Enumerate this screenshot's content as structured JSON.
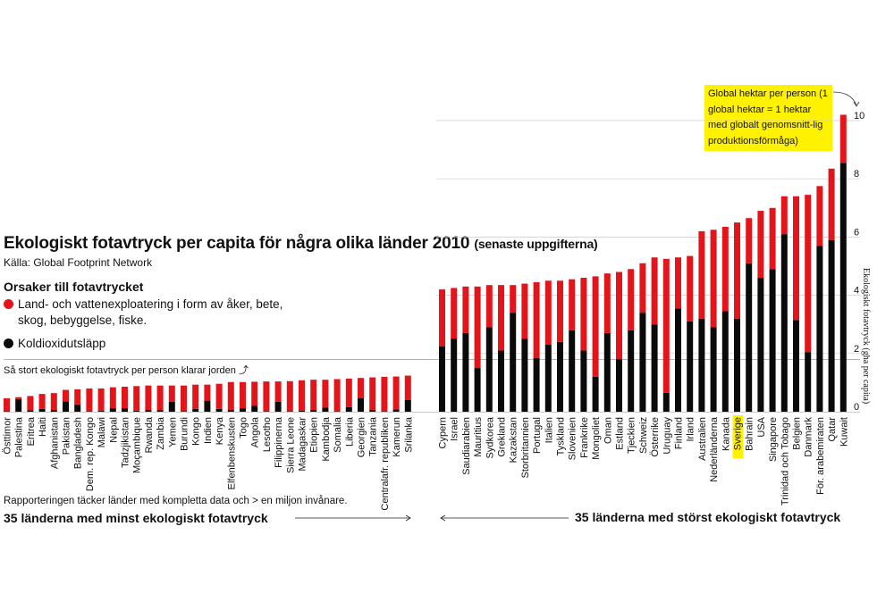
{
  "title": "Ekologiskt fotavtryck per capita för några olika länder 2010",
  "title_suffix": "(senaste uppgifterna)",
  "source": "Källa: Global Footprint Network",
  "legend_title": "Orsaker till fotavtrycket",
  "legend_land": "Land- och vattenexploatering i form av åker, bete, skog, bebyggelse, fiske.",
  "legend_co2": "Koldioxidutsläpp",
  "earth_note": "Så stort ekologiskt fotavtryck per person klarar jorden",
  "report_note": "Rapporteringen täcker länder med kompletta data och > en miljon invånare.",
  "footer_left": "35 länderna med minst ekologiskt fotavtryck",
  "footer_right": "35 länderna med störst ekologiskt fotavtryck",
  "callout": "Global hektar per person (1 global hektar = 1 hektar med globalt genomsnitt-lig produktionsförmåga)",
  "ylabel": "Ekologiskt fotavtryck (gha per capita)",
  "highlight_country": "Sverige",
  "colors": {
    "land": "#e4141b",
    "co2": "#0a0a0a",
    "highlight": "#fff200",
    "grid": "#cccccc"
  },
  "chart_data": [
    {
      "type": "bar",
      "stacked": true,
      "biocapacity_line": 1.8,
      "categories": [
        "Östtimor",
        "Palestina",
        "Eritrea",
        "Haiti",
        "Afghanistan",
        "Pakistan",
        "Bangladesh",
        "Dem. rep. Kongo",
        "Malawi",
        "Nepal",
        "Tadzjikistan",
        "Moçambique",
        "Rwanda",
        "Zambia",
        "Yemen",
        "Burundi",
        "Kongo",
        "Indien",
        "Kenya",
        "Elfenbenskusten",
        "Togo",
        "Angola",
        "Lesotho",
        "Filippinerna",
        "Sierra Leone",
        "Madagaskar",
        "Etiopien",
        "Kambodja",
        "Somalia",
        "Liberia",
        "Georgien",
        "Tanzania",
        "Centralafr. republiken",
        "Kamerun",
        "Srilanka"
      ],
      "series": [
        {
          "name": "Koldioxidutsläpp",
          "values": [
            0.02,
            0.43,
            0.05,
            0.1,
            0.06,
            0.35,
            0.25,
            0.02,
            0.04,
            0.12,
            0.12,
            0.04,
            0.06,
            0.06,
            0.34,
            0.02,
            0.1,
            0.38,
            0.1,
            0.06,
            0.12,
            0.2,
            0.02,
            0.34,
            0.02,
            0.04,
            0.06,
            0.14,
            0.02,
            0.16,
            0.46,
            0.06,
            0.02,
            0.08,
            0.4
          ]
        },
        {
          "name": "Land- och vattenexploatering",
          "values": [
            0.44,
            0.07,
            0.49,
            0.51,
            0.58,
            0.4,
            0.52,
            0.78,
            0.76,
            0.72,
            0.74,
            0.84,
            0.84,
            0.84,
            0.56,
            0.88,
            0.83,
            0.55,
            0.86,
            0.96,
            0.9,
            0.83,
            1.02,
            0.7,
            1.03,
            1.04,
            1.04,
            0.96,
            1.1,
            0.98,
            0.7,
            1.12,
            1.18,
            1.13,
            0.84
          ]
        }
      ]
    },
    {
      "type": "bar",
      "stacked": true,
      "ylim": [
        0,
        10
      ],
      "yticks": [
        0,
        2,
        4,
        6,
        8,
        10
      ],
      "categories": [
        "Cypern",
        "Israel",
        "Saudiarabien",
        "Mauritius",
        "Sydkorea",
        "Grekland",
        "Kazakstan",
        "Storbritannien",
        "Portugal",
        "Italien",
        "Tyskland",
        "Slovenien",
        "Frankrike",
        "Mongoliet",
        "Oman",
        "Estland",
        "Tjeckien",
        "Schweiz",
        "Österrike",
        "Uruguay",
        "Finland",
        "Irland",
        "Australien",
        "Nederländerna",
        "Kanada",
        "Sverige",
        "Bahrain",
        "USA",
        "Singapore",
        "Trinidad och Tobago",
        "Belgien",
        "Danmark",
        "För. arabemiraten",
        "Qatar",
        "Kuwait"
      ],
      "series": [
        {
          "name": "Koldioxidutsläpp",
          "values": [
            2.25,
            2.5,
            2.7,
            1.5,
            2.9,
            2.1,
            3.4,
            2.5,
            1.85,
            2.3,
            2.4,
            2.8,
            2.1,
            1.2,
            2.7,
            1.8,
            2.8,
            3.4,
            3.0,
            0.65,
            3.55,
            3.1,
            3.2,
            2.9,
            3.45,
            3.2,
            5.1,
            4.6,
            4.9,
            6.1,
            3.15,
            2.05,
            5.7,
            5.9,
            8.55
          ]
        },
        {
          "name": "Land- och vattenexploatering",
          "values": [
            1.95,
            1.75,
            1.6,
            2.8,
            1.45,
            2.25,
            0.95,
            1.9,
            2.6,
            2.2,
            2.1,
            1.75,
            2.5,
            3.45,
            2.05,
            3.0,
            2.1,
            1.7,
            2.3,
            4.6,
            1.75,
            2.25,
            3.0,
            3.35,
            2.9,
            3.3,
            1.55,
            2.3,
            2.1,
            1.3,
            4.25,
            5.4,
            2.05,
            2.45,
            1.65
          ]
        }
      ]
    }
  ]
}
